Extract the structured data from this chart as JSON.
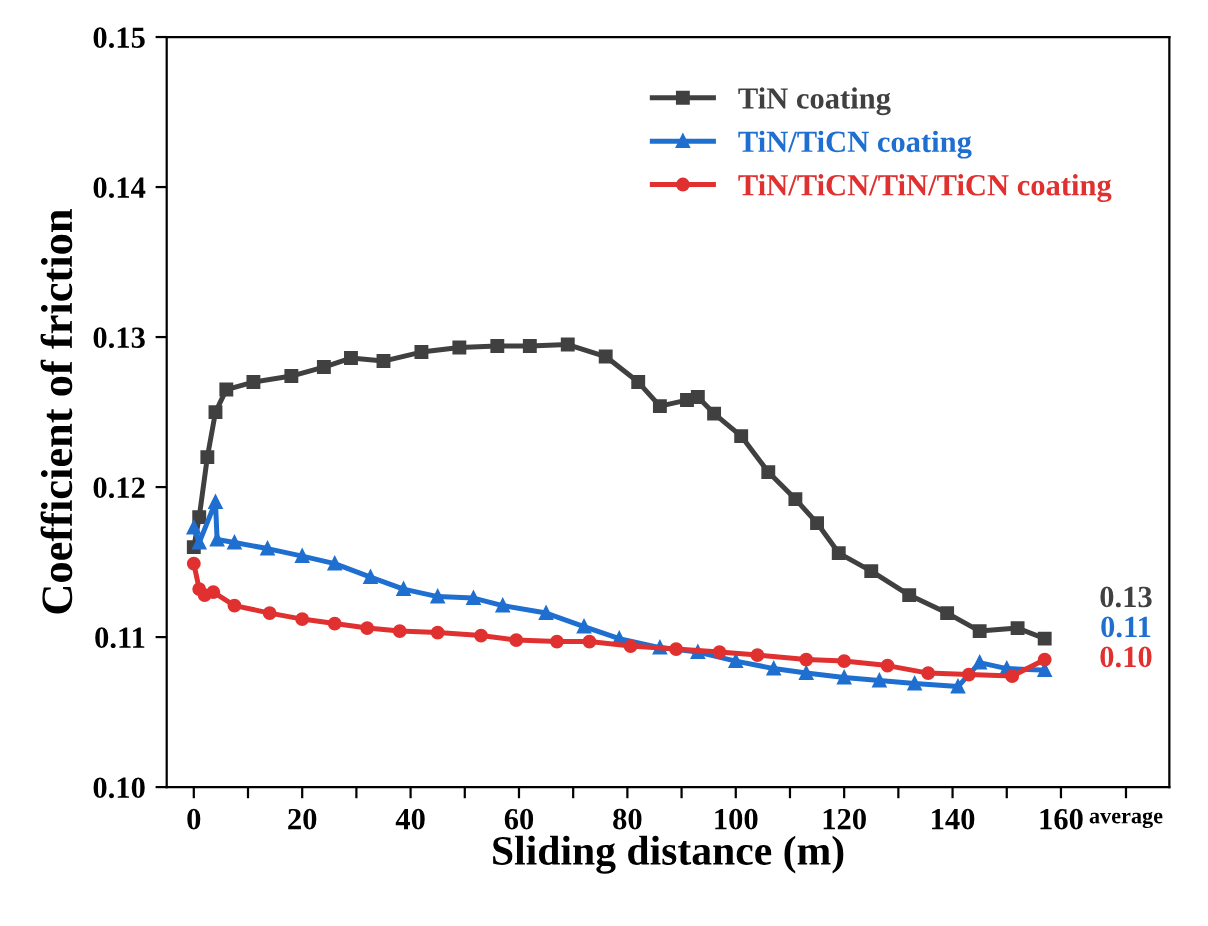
{
  "chart_data": {
    "type": "line",
    "xlabel": "Sliding distance (m)",
    "ylabel": "Coefficient of friction",
    "xlim": [
      -5,
      180
    ],
    "ylim": [
      0.1,
      0.15
    ],
    "xticks": [
      0,
      {
        "value": 10,
        "label": null
      },
      20,
      {
        "value": 30,
        "label": null
      },
      40,
      {
        "value": 50,
        "label": null
      },
      60,
      {
        "value": 70,
        "label": null
      },
      80,
      {
        "value": 90,
        "label": null
      },
      100,
      {
        "value": 110,
        "label": null
      },
      120,
      {
        "value": 130,
        "label": null
      },
      140,
      {
        "value": 150,
        "label": null
      },
      160,
      {
        "value": 172,
        "label": "average"
      }
    ],
    "yticks": [
      {
        "value": 0.1,
        "label": "0.10"
      },
      {
        "value": 0.11,
        "label": "0.11"
      },
      {
        "value": 0.12,
        "label": "0.12"
      },
      {
        "value": 0.13,
        "label": "0.13"
      },
      {
        "value": 0.14,
        "label": "0.14"
      },
      {
        "value": 0.15,
        "label": "0.15"
      }
    ],
    "grid": false,
    "legend": "top right",
    "line_style": "solid",
    "annotations": [
      "0.13",
      "0.11",
      "0.10"
    ],
    "series": [
      {
        "name": "TiN coating",
        "color": "#404040",
        "marker": "square",
        "x": [
          0,
          1,
          2.5,
          4,
          6,
          11,
          18,
          24,
          29,
          35,
          42,
          49,
          56,
          62,
          69,
          76,
          82,
          86,
          91,
          93,
          96,
          101,
          106,
          111,
          115,
          119,
          125,
          132,
          139,
          145,
          152,
          157
        ],
        "values": [
          0.116,
          0.118,
          0.122,
          0.125,
          0.1265,
          0.127,
          0.1274,
          0.128,
          0.1286,
          0.1284,
          0.129,
          0.1293,
          0.1294,
          0.1294,
          0.1295,
          0.1287,
          0.127,
          0.1254,
          0.1258,
          0.126,
          0.1249,
          0.1234,
          0.121,
          0.1192,
          0.1176,
          0.1156,
          0.1144,
          0.1128,
          0.1116,
          0.1104,
          0.1106,
          0.1099
        ]
      },
      {
        "name": "TiN/TiCN coating",
        "color": "#1f6fd0",
        "marker": "triangle",
        "x": [
          0,
          1,
          4,
          4.3,
          7.5,
          13.6,
          20,
          26,
          32.6,
          38.7,
          45,
          51.6,
          57,
          65,
          72,
          78.5,
          86,
          93,
          100,
          107,
          113,
          120,
          126.5,
          133,
          141,
          145,
          150,
          157
        ],
        "values": [
          0.1173,
          0.1163,
          0.119,
          0.1165,
          0.1163,
          0.1159,
          0.1154,
          0.1149,
          0.114,
          0.1132,
          0.1127,
          0.1126,
          0.1121,
          0.1116,
          0.1107,
          0.1099,
          0.1093,
          0.109,
          0.1084,
          0.1079,
          0.1076,
          0.1073,
          0.1071,
          0.1069,
          0.1067,
          0.1083,
          0.1079,
          0.1078
        ]
      },
      {
        "name": "TiN/TiCN/TiN/TiCN coating",
        "color": "#e03030",
        "marker": "circle",
        "x": [
          0,
          1,
          2,
          3.6,
          7.5,
          14,
          20,
          26,
          32,
          38,
          45,
          53,
          59.5,
          67,
          73,
          80.6,
          89,
          97,
          104,
          113,
          120,
          128,
          135.5,
          143,
          151,
          157
        ],
        "values": [
          0.1149,
          0.1132,
          0.1128,
          0.113,
          0.1121,
          0.1116,
          0.1112,
          0.1109,
          0.1106,
          0.1104,
          0.1103,
          0.1101,
          0.1098,
          0.1097,
          0.1097,
          0.1094,
          0.1092,
          0.109,
          0.1088,
          0.1085,
          0.1084,
          0.1081,
          0.1076,
          0.1075,
          0.1074,
          0.1085
        ]
      }
    ]
  }
}
